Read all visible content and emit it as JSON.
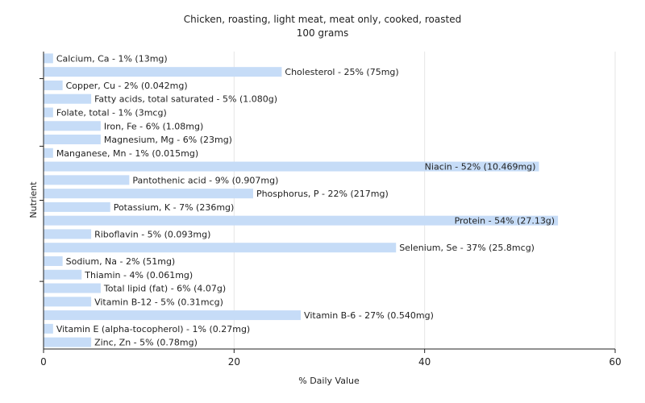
{
  "chart_data": {
    "type": "bar",
    "orientation": "horizontal",
    "title": [
      "Chicken, roasting, light meat, meat only, cooked, roasted",
      "100 grams"
    ],
    "xlabel": "% Daily Value",
    "ylabel": "Nutrient",
    "xlim": [
      0,
      60
    ],
    "xticks": [
      0,
      20,
      40,
      60
    ],
    "grid": true,
    "bar_color": "#c6dcf7",
    "categories": [
      "Calcium, Ca",
      "Cholesterol",
      "Copper, Cu",
      "Fatty acids, total saturated",
      "Folate, total",
      "Iron, Fe",
      "Magnesium, Mg",
      "Manganese, Mn",
      "Niacin",
      "Pantothenic acid",
      "Phosphorus, P",
      "Potassium, K",
      "Protein",
      "Riboflavin",
      "Selenium, Se",
      "Sodium, Na",
      "Thiamin",
      "Total lipid (fat)",
      "Vitamin B-12",
      "Vitamin B-6",
      "Vitamin E (alpha-tocopherol)",
      "Zinc, Zn"
    ],
    "values": [
      1,
      25,
      2,
      5,
      1,
      6,
      6,
      1,
      52,
      9,
      22,
      7,
      54,
      5,
      37,
      2,
      4,
      6,
      5,
      27,
      1,
      5
    ],
    "labels": [
      "Calcium, Ca - 1% (13mg)",
      "Cholesterol - 25% (75mg)",
      "Copper, Cu - 2% (0.042mg)",
      "Fatty acids, total saturated - 5% (1.080g)",
      "Folate, total - 1% (3mcg)",
      "Iron, Fe - 6% (1.08mg)",
      "Magnesium, Mg - 6% (23mg)",
      "Manganese, Mn - 1% (0.015mg)",
      "Niacin - 52% (10.469mg)",
      "Pantothenic acid - 9% (0.907mg)",
      "Phosphorus, P - 22% (217mg)",
      "Potassium, K - 7% (236mg)",
      "Protein - 54% (27.13g)",
      "Riboflavin - 5% (0.093mg)",
      "Selenium, Se - 37% (25.8mcg)",
      "Sodium, Na - 2% (51mg)",
      "Thiamin - 4% (0.061mg)",
      "Total lipid (fat) - 6% (4.07g)",
      "Vitamin B-12 - 5% (0.31mcg)",
      "Vitamin B-6 - 27% (0.540mg)",
      "Vitamin E (alpha-tocopherol) - 1% (0.27mg)",
      "Zinc, Zn - 5% (0.78mg)"
    ]
  }
}
